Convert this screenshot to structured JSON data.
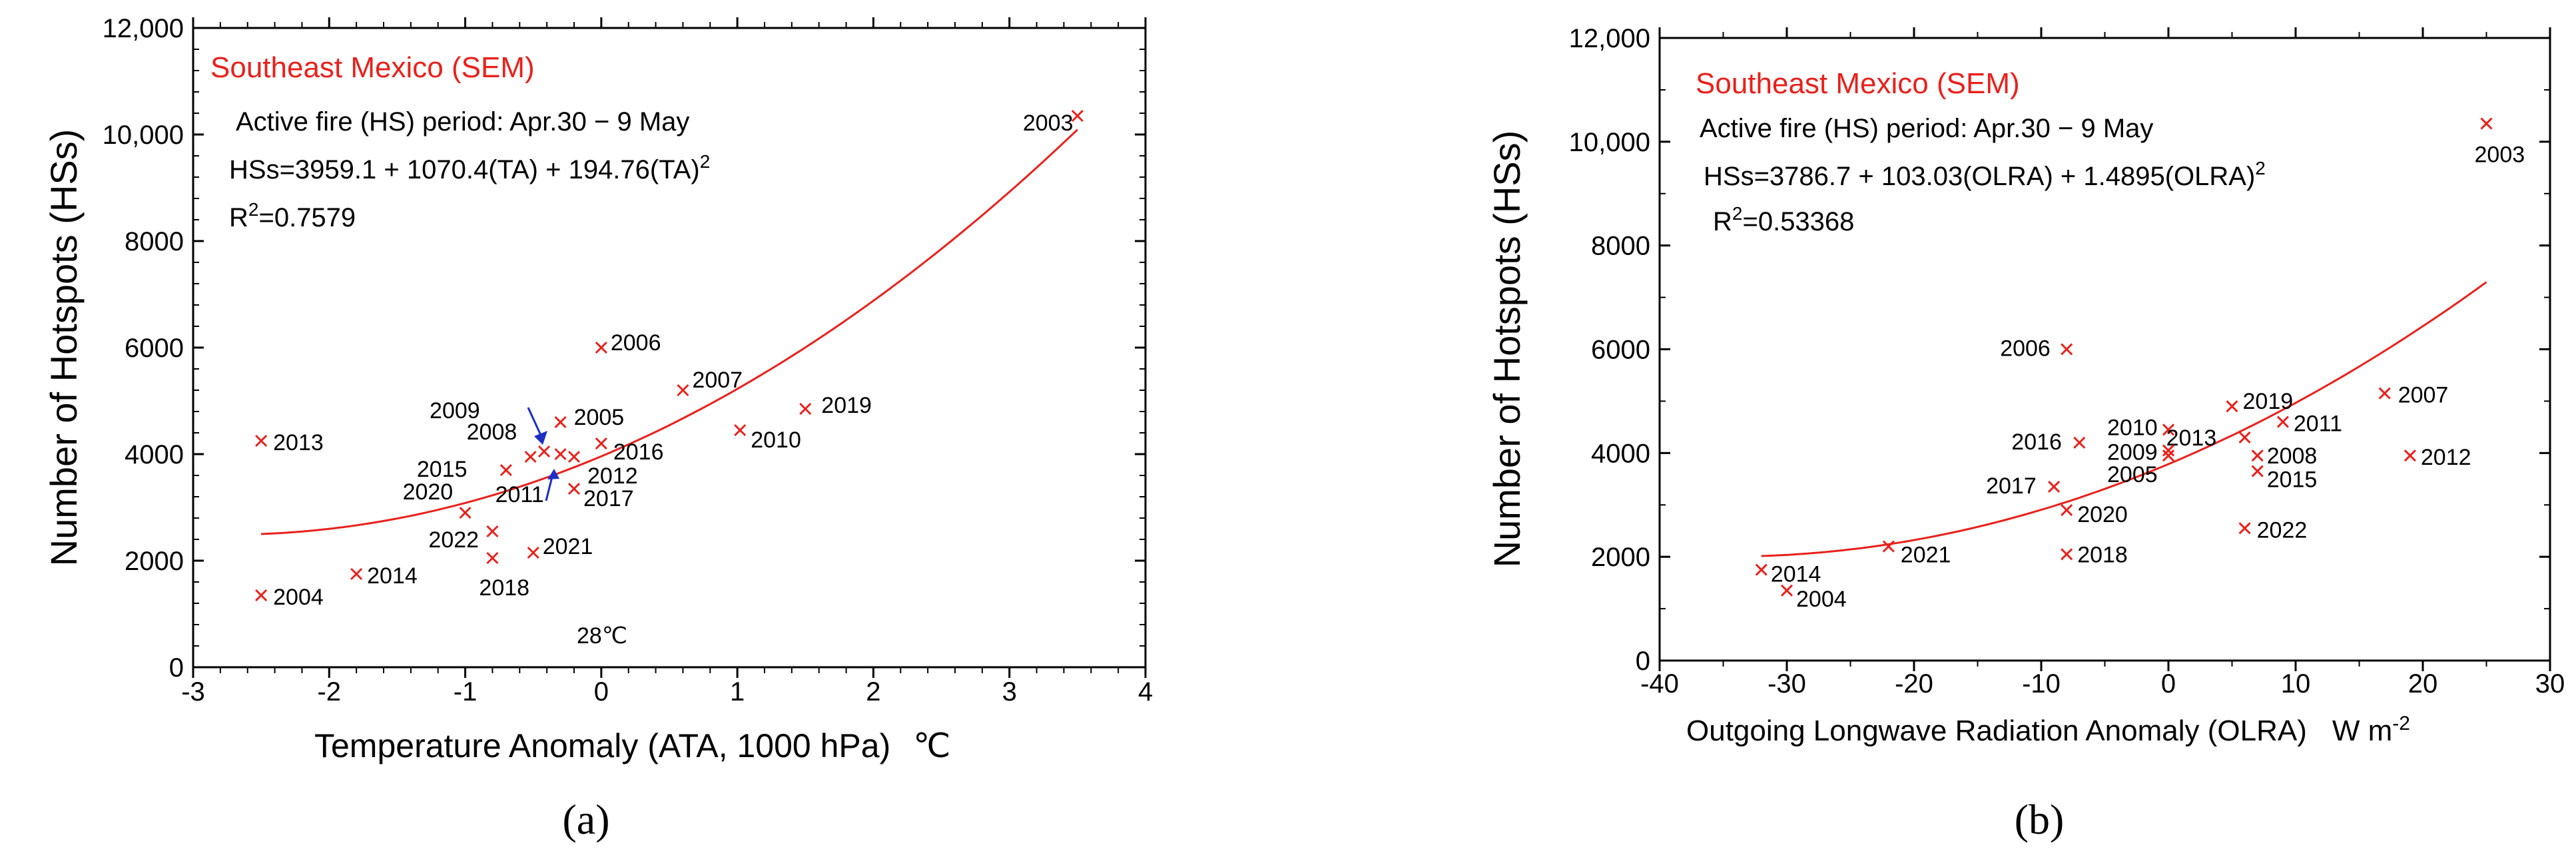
{
  "colors": {
    "marker": "#e8211c",
    "curve": "#e8211c",
    "arrow": "#1f2fc4",
    "axis": "#000000"
  },
  "chart_data": [
    {
      "type": "scatter",
      "panel_label": "(a)",
      "title": "Southeast Mexico (SEM)",
      "annotations": {
        "period": "Active fire (HS) period: Apr.30 − 9 May",
        "equation": "HSs=3959.1 + 1070.4(TA) + 194.76(TA)",
        "equation_sup": "2",
        "r2_prefix": "R",
        "r2_sup": "2",
        "r2_value": "=0.7579",
        "temp_note": "28℃"
      },
      "xlabel": "Temperature Anomaly (ATA, 1000 hPa)",
      "xunit": "℃",
      "ylabel": "Number of Hotspots (HSs)",
      "xlim": [
        -3,
        4
      ],
      "ylim": [
        0,
        12000
      ],
      "xticks": [
        -3,
        -2,
        -1,
        0,
        1,
        2,
        3,
        4
      ],
      "xtick_labels": [
        "-3",
        "-2",
        "-1",
        "0",
        "1",
        "2",
        "3",
        "4"
      ],
      "yticks": [
        0,
        2000,
        4000,
        6000,
        8000,
        10000,
        12000
      ],
      "ytick_labels": [
        "0",
        "2000",
        "4000",
        "6000",
        "8000",
        "10,000",
        "12,000"
      ],
      "fit": {
        "a": 3959.1,
        "b": 1070.4,
        "c": 194.76,
        "x_range": [
          -2.5,
          3.5
        ]
      },
      "points": [
        {
          "label": "2003",
          "x": 3.5,
          "y": 10350
        },
        {
          "label": "2006",
          "x": 0.0,
          "y": 6000
        },
        {
          "label": "2007",
          "x": 0.6,
          "y": 5200
        },
        {
          "label": "2019",
          "x": 1.5,
          "y": 4850
        },
        {
          "label": "2010",
          "x": 1.02,
          "y": 4450
        },
        {
          "label": "2013",
          "x": -2.5,
          "y": 4250
        },
        {
          "label": "2005",
          "x": -0.3,
          "y": 4600
        },
        {
          "label": "2009",
          "x": -0.42,
          "y": 4050
        },
        {
          "label": "2008",
          "x": -0.52,
          "y": 3950
        },
        {
          "label": "2016",
          "x": 0.0,
          "y": 4200
        },
        {
          "label": "2012",
          "x": -0.2,
          "y": 3950
        },
        {
          "label": "2015",
          "x": -0.7,
          "y": 3700
        },
        {
          "label": "2011",
          "x": -0.3,
          "y": 4000
        },
        {
          "label": "2017",
          "x": -0.2,
          "y": 3350
        },
        {
          "label": "2020",
          "x": -1.0,
          "y": 2900
        },
        {
          "label": "2022",
          "x": -0.8,
          "y": 2550
        },
        {
          "label": "2021",
          "x": -0.5,
          "y": 2150
        },
        {
          "label": "2018",
          "x": -0.8,
          "y": 2050
        },
        {
          "label": "2014",
          "x": -1.8,
          "y": 1750
        },
        {
          "label": "2004",
          "x": -2.5,
          "y": 1350
        }
      ]
    },
    {
      "type": "scatter",
      "panel_label": "(b)",
      "title": "Southeast Mexico (SEM)",
      "annotations": {
        "period": "Active fire (HS) period: Apr.30 − 9 May",
        "equation": "HSs=3786.7 + 103.03(OLRA) + 1.4895(OLRA)",
        "equation_sup": "2",
        "r2_prefix": "R",
        "r2_sup": "2",
        "r2_value": "=0.53368"
      },
      "xlabel": "Outgoing Longwave Radiation Anomaly (OLRA)",
      "xunit": "W m",
      "xunit_sup": "-2",
      "ylabel": "Number of Hotspots (HSs)",
      "xlim": [
        -40,
        30
      ],
      "ylim": [
        0,
        12000
      ],
      "xticks": [
        -40,
        -30,
        -20,
        -10,
        0,
        10,
        20,
        30
      ],
      "xtick_labels": [
        "-40",
        "-30",
        "-20",
        "-10",
        "0",
        "10",
        "20",
        "30"
      ],
      "yticks": [
        0,
        2000,
        4000,
        6000,
        8000,
        10000,
        12000
      ],
      "ytick_labels": [
        "0",
        "2000",
        "4000",
        "6000",
        "8000",
        "10,000",
        "12,000"
      ],
      "fit": {
        "a": 3786.7,
        "b": 103.03,
        "c": 1.4895,
        "x_range": [
          -32,
          25
        ]
      },
      "points": [
        {
          "label": "2003",
          "x": 25,
          "y": 10350
        },
        {
          "label": "2006",
          "x": -8,
          "y": 6000
        },
        {
          "label": "2007",
          "x": 17,
          "y": 5150
        },
        {
          "label": "2019",
          "x": 5,
          "y": 4900
        },
        {
          "label": "2011",
          "x": 9,
          "y": 4600
        },
        {
          "label": "2010",
          "x": 0,
          "y": 4450
        },
        {
          "label": "2013",
          "x": 6,
          "y": 4300
        },
        {
          "label": "2016",
          "x": -7,
          "y": 4200
        },
        {
          "label": "2009",
          "x": 0,
          "y": 4050
        },
        {
          "label": "2005",
          "x": 0,
          "y": 3950
        },
        {
          "label": "2008",
          "x": 7,
          "y": 3950
        },
        {
          "label": "2012",
          "x": 19,
          "y": 3950
        },
        {
          "label": "2015",
          "x": 7,
          "y": 3650
        },
        {
          "label": "2017",
          "x": -9,
          "y": 3350
        },
        {
          "label": "2020",
          "x": -8,
          "y": 2900
        },
        {
          "label": "2022",
          "x": 6,
          "y": 2550
        },
        {
          "label": "2021",
          "x": -22,
          "y": 2200
        },
        {
          "label": "2018",
          "x": -8,
          "y": 2050
        },
        {
          "label": "2014",
          "x": -32,
          "y": 1750
        },
        {
          "label": "2004",
          "x": -30,
          "y": 1350
        }
      ]
    }
  ]
}
